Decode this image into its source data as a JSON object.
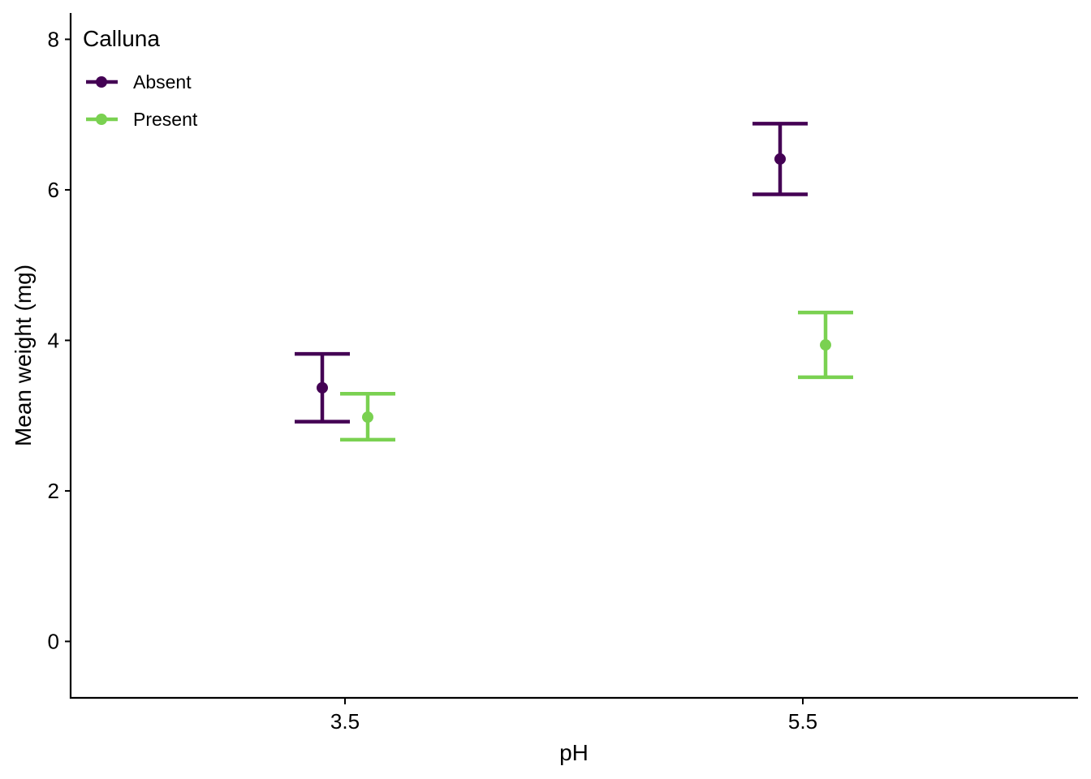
{
  "chart_data": {
    "type": "scatter",
    "title": "",
    "xlabel": "pH",
    "ylabel": "Mean weight (mg)",
    "categories": [
      "3.5",
      "5.5"
    ],
    "ylim": [
      -0.75,
      8.35
    ],
    "yticks": [
      0,
      2,
      4,
      6,
      8
    ],
    "grid": false,
    "error_bars": true,
    "legend": {
      "title": "Calluna",
      "placement": "top-left"
    },
    "series": [
      {
        "name": "Absent",
        "color": "#440154",
        "values": [
          3.37,
          6.41
        ],
        "lower": [
          2.92,
          5.94
        ],
        "upper": [
          3.82,
          6.88
        ]
      },
      {
        "name": "Present",
        "color": "#7AD151",
        "values": [
          2.98,
          3.94
        ],
        "lower": [
          2.68,
          3.51
        ],
        "upper": [
          3.29,
          4.37
        ]
      }
    ]
  }
}
